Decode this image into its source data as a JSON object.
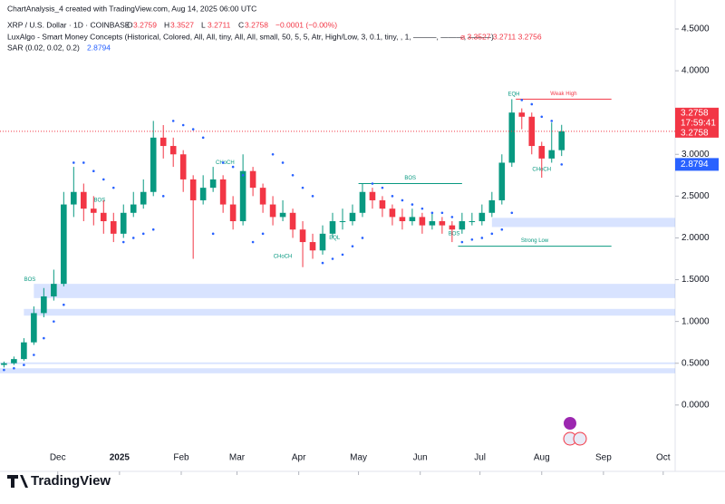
{
  "header": {
    "credit": "ChartAnalysis_4 created with TradingView.com, Aug 14, 2025 06:00 UTC",
    "symbol": "XRP / U.S. Dollar · 1D · COINBASE",
    "ohlc": [
      {
        "label": "O",
        "value": "3.2759"
      },
      {
        "label": "H",
        "value": "3.3527"
      },
      {
        "label": "L",
        "value": "3.2711"
      },
      {
        "label": "C",
        "value": "3.2758"
      }
    ],
    "change": "−0.0001 (−0.00%)",
    "indicator": "LuxAlgo - Smart Money Concepts (Historical, Colored, All, All, tiny, All, All, small, 50, 5, 5, Atr, High/Low, 3, 0.1, tiny, , 1, ———, ———, ———)",
    "indicator_values": "⌀ 3.3527 3.2711 3.2756",
    "sar": "SAR (0.02, 0.02, 0.2)",
    "sar_value": "2.8794",
    "logo": "TradingView",
    "countdown": "17:59:41"
  },
  "chart_data": {
    "type": "candlestick",
    "x": [
      0,
      5,
      10,
      15,
      20,
      25,
      30,
      35,
      40,
      45,
      50,
      55,
      60,
      65,
      70,
      75,
      80,
      85,
      90,
      95,
      100,
      105,
      110,
      115,
      120,
      125,
      130,
      135,
      140,
      145,
      150,
      155,
      160,
      165,
      170,
      175,
      180,
      185,
      190,
      195,
      200,
      205,
      210,
      215,
      220,
      225,
      230,
      235,
      240,
      245,
      250,
      255,
      260,
      265,
      270,
      275,
      280
    ],
    "open": [
      0.48,
      0.5,
      0.55,
      0.75,
      1.1,
      1.3,
      1.45,
      2.4,
      2.55,
      2.35,
      2.3,
      2.2,
      2.05,
      2.3,
      2.4,
      2.55,
      3.2,
      3.1,
      3.0,
      2.7,
      2.45,
      2.6,
      2.7,
      2.4,
      2.2,
      2.8,
      2.6,
      2.4,
      2.25,
      2.3,
      2.1,
      1.95,
      1.85,
      2.05,
      2.2,
      2.2,
      2.3,
      2.55,
      2.45,
      2.35,
      2.25,
      2.2,
      2.25,
      2.15,
      2.2,
      2.15,
      2.1,
      2.2,
      2.2,
      2.3,
      2.45,
      2.9,
      3.5,
      3.45,
      3.1,
      2.95,
      3.05
    ],
    "high": [
      0.52,
      0.58,
      0.8,
      1.18,
      1.4,
      1.62,
      2.55,
      2.85,
      2.65,
      2.5,
      2.45,
      2.3,
      2.4,
      2.55,
      2.7,
      3.4,
      3.35,
      3.2,
      3.05,
      2.75,
      2.75,
      2.85,
      2.75,
      2.5,
      3.0,
      2.85,
      2.65,
      2.5,
      2.45,
      2.35,
      2.2,
      2.05,
      2.15,
      2.3,
      2.35,
      2.4,
      2.65,
      2.6,
      2.5,
      2.4,
      2.35,
      2.35,
      2.3,
      2.3,
      2.25,
      2.2,
      2.3,
      2.3,
      2.4,
      2.55,
      3.0,
      3.66,
      3.55,
      3.5,
      3.15,
      3.38,
      3.3527
    ],
    "low": [
      0.45,
      0.48,
      0.53,
      0.72,
      1.05,
      1.25,
      1.42,
      2.25,
      2.2,
      2.15,
      2.05,
      1.95,
      2.0,
      2.25,
      2.35,
      2.5,
      2.95,
      2.85,
      2.55,
      1.75,
      2.4,
      2.55,
      2.3,
      2.1,
      2.15,
      2.5,
      2.3,
      2.15,
      2.2,
      2.0,
      1.65,
      1.75,
      1.8,
      2.0,
      2.1,
      2.15,
      2.25,
      2.35,
      2.25,
      2.15,
      2.1,
      2.15,
      2.05,
      2.1,
      2.05,
      1.95,
      2.05,
      2.15,
      2.15,
      2.25,
      2.4,
      2.85,
      3.3,
      3.0,
      2.72,
      2.9,
      2.98
    ],
    "close": [
      0.5,
      0.55,
      0.75,
      1.1,
      1.3,
      1.45,
      2.4,
      2.55,
      2.35,
      2.3,
      2.2,
      2.05,
      2.3,
      2.4,
      2.55,
      3.2,
      3.1,
      3.0,
      2.7,
      2.45,
      2.6,
      2.7,
      2.4,
      2.2,
      2.8,
      2.6,
      2.4,
      2.25,
      2.3,
      2.1,
      1.95,
      1.85,
      2.05,
      2.2,
      2.2,
      2.3,
      2.55,
      2.45,
      2.35,
      2.25,
      2.2,
      2.25,
      2.15,
      2.2,
      2.15,
      2.1,
      2.2,
      2.2,
      2.3,
      2.45,
      2.9,
      3.5,
      3.45,
      3.1,
      2.95,
      3.05,
      3.2758
    ],
    "up_color": "#089981",
    "down_color": "#f23645",
    "sar": {
      "color": "#2962ff",
      "values": [
        0.42,
        0.44,
        0.48,
        0.6,
        0.8,
        1.0,
        1.2,
        2.9,
        2.9,
        2.8,
        2.7,
        2.6,
        1.95,
        2.0,
        2.05,
        2.1,
        2.5,
        3.4,
        3.35,
        3.3,
        3.2,
        2.05,
        2.9,
        2.85,
        2.75,
        1.95,
        2.05,
        3.0,
        2.9,
        2.75,
        2.6,
        2.5,
        1.7,
        1.75,
        1.8,
        1.9,
        2.0,
        2.65,
        2.6,
        2.5,
        2.45,
        2.4,
        2.35,
        2.3,
        2.3,
        2.25,
        1.95,
        1.98,
        2.0,
        2.05,
        2.1,
        2.3,
        3.65,
        3.6,
        3.45,
        3.4,
        2.8794
      ]
    },
    "zones": [
      {
        "from": 2.13,
        "to": 2.24,
        "start": 245
      },
      {
        "from": 1.28,
        "to": 1.45,
        "start": 15
      },
      {
        "from": 1.07,
        "to": 1.15,
        "start": 10
      },
      {
        "from": 0.38,
        "to": 0.44,
        "start": -2
      },
      {
        "from": 0.49,
        "to": 0.51,
        "start": -2
      }
    ],
    "levels": [
      {
        "text": "BOS",
        "y": 2.65,
        "x0": 178,
        "x1": 230,
        "color": "#089981"
      },
      {
        "text": "Weak High",
        "y": 3.66,
        "x0": 257,
        "x1": 305,
        "color": "#f23645"
      },
      {
        "text": "Strong Low",
        "y": 1.9,
        "x0": 228,
        "x1": 305,
        "color": "#089981"
      }
    ],
    "annotations": [
      {
        "text": "EQH",
        "y": 3.72,
        "x": 256
      },
      {
        "text": "CHoCH",
        "y": 2.82,
        "x": 270
      },
      {
        "text": "CHoCH",
        "y": 1.78,
        "x": 140
      },
      {
        "text": "BOS",
        "y": 2.05,
        "x": 226
      },
      {
        "text": "EQL",
        "y": 2.0,
        "x": 166
      },
      {
        "text": "BOS",
        "y": 2.45,
        "x": 48
      },
      {
        "text": "BOS",
        "y": 1.5,
        "x": 13
      },
      {
        "text": "CHoCH",
        "y": 2.9,
        "x": 111
      }
    ],
    "xlim": [
      -2,
      337
    ],
    "ylim": [
      -0.36,
      4.63
    ],
    "xticks": [
      {
        "value": 27,
        "label": "Dec"
      },
      {
        "value": 58,
        "label": "2025"
      },
      {
        "value": 89,
        "label": "Feb"
      },
      {
        "value": 117,
        "label": "Mar"
      },
      {
        "value": 148,
        "label": "Apr"
      },
      {
        "value": 178,
        "label": "May"
      },
      {
        "value": 209,
        "label": "Jun"
      },
      {
        "value": 239,
        "label": "Jul"
      },
      {
        "value": 270,
        "label": "Aug"
      },
      {
        "value": 301,
        "label": "Sep"
      },
      {
        "value": 331,
        "label": "Oct"
      }
    ],
    "yticks": [
      {
        "value": 0,
        "label": "0.0000"
      },
      {
        "value": 0.5,
        "label": "0.5000"
      },
      {
        "value": 1,
        "label": "1.0000"
      },
      {
        "value": 1.5,
        "label": "1.5000"
      },
      {
        "value": 2,
        "label": "2.0000"
      },
      {
        "value": 2.5,
        "label": "2.5000"
      },
      {
        "value": 3,
        "label": "3.0000"
      },
      {
        "value": 3.5,
        "label": "3.5000"
      },
      {
        "value": 4,
        "label": "4.0000"
      },
      {
        "value": 4.5,
        "label": "4.5000"
      }
    ]
  }
}
